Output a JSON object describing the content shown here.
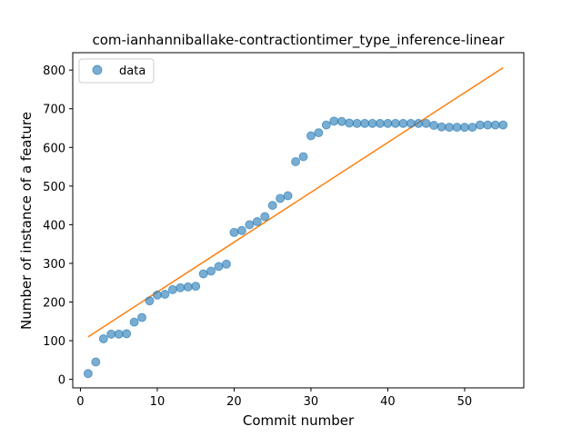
{
  "chart_data": {
    "type": "scatter",
    "title": "com-ianhanniballake-contractiontimer_type_inference-linear",
    "xlabel": "Commit number",
    "ylabel": "Number of instance of a feature",
    "xlim": [
      -1,
      57.7
    ],
    "ylim": [
      -22,
      845
    ],
    "xticks": [
      0,
      10,
      20,
      30,
      40,
      50
    ],
    "yticks": [
      0,
      100,
      200,
      300,
      400,
      500,
      600,
      700,
      800
    ],
    "grid": false,
    "legend": {
      "position": "top-left",
      "entries": [
        "data"
      ]
    },
    "series": [
      {
        "name": "data",
        "kind": "scatter",
        "color": "#1f77b4",
        "x": [
          1,
          2,
          3,
          4,
          5,
          6,
          7,
          8,
          9,
          10,
          11,
          12,
          13,
          14,
          15,
          16,
          17,
          18,
          19,
          20,
          21,
          22,
          23,
          24,
          25,
          26,
          27,
          28,
          29,
          30,
          31,
          32,
          33,
          34,
          35,
          36,
          37,
          38,
          39,
          40,
          41,
          42,
          43,
          44,
          45,
          46,
          47,
          48,
          49,
          50,
          51,
          52,
          53,
          54,
          55
        ],
        "y": [
          15,
          45,
          105,
          117,
          117,
          118,
          148,
          160,
          203,
          218,
          220,
          232,
          237,
          239,
          241,
          273,
          280,
          292,
          298,
          380,
          385,
          400,
          408,
          421,
          450,
          468,
          475,
          563,
          576,
          630,
          638,
          658,
          668,
          667,
          663,
          662,
          662,
          662,
          662,
          662,
          662,
          662,
          662,
          662,
          662,
          657,
          653,
          652,
          652,
          652,
          652,
          658,
          658,
          658,
          658
        ]
      },
      {
        "kind": "line",
        "color": "#ff7f0e",
        "x": [
          1,
          55
        ],
        "y": [
          110,
          806
        ]
      }
    ]
  }
}
